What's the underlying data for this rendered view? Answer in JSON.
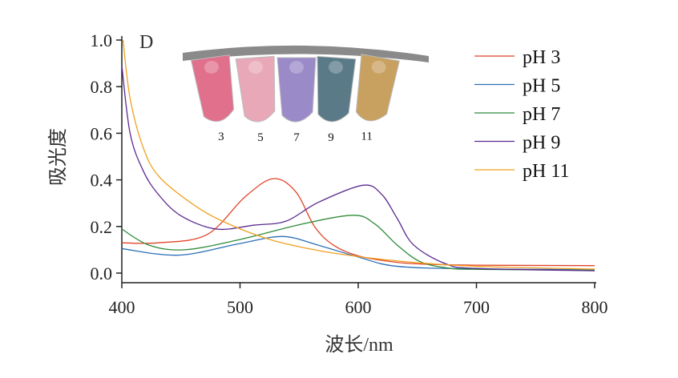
{
  "chart_data": {
    "type": "line",
    "panel_label": "D",
    "xlabel": "波长/nm",
    "ylabel": "吸光度",
    "xlim": [
      400,
      800
    ],
    "ylim": [
      0,
      1.0
    ],
    "xticks": [
      "400",
      "500",
      "600",
      "700",
      "800"
    ],
    "yticks": [
      "0.0",
      "0.2",
      "0.4",
      "0.6",
      "0.8",
      "1.0"
    ],
    "legend_position": "top-right",
    "series": [
      {
        "name": "pH 3",
        "color": "#e0452a",
        "x": [
          400,
          431,
          472,
          504,
          528,
          547,
          563,
          579,
          600,
          633,
          660,
          700,
          800
        ],
        "y": [
          0.13,
          0.13,
          0.165,
          0.326,
          0.405,
          0.35,
          0.2,
          0.12,
          0.074,
          0.046,
          0.038,
          0.034,
          0.032
        ]
      },
      {
        "name": "pH 5",
        "color": "#2b6fb8",
        "x": [
          400,
          448,
          499,
          536,
          566,
          600,
          633,
          700,
          800
        ],
        "y": [
          0.105,
          0.077,
          0.126,
          0.157,
          0.12,
          0.069,
          0.029,
          0.018,
          0.015
        ]
      },
      {
        "name": "pH 7",
        "color": "#2e8b3a",
        "x": [
          400,
          423,
          453,
          499,
          553,
          596,
          614,
          633,
          652,
          674,
          700,
          800
        ],
        "y": [
          0.189,
          0.12,
          0.1,
          0.143,
          0.211,
          0.248,
          0.211,
          0.12,
          0.05,
          0.023,
          0.016,
          0.012
        ]
      },
      {
        "name": "pH 9",
        "color": "#5a2a90",
        "x": [
          400,
          407,
          418,
          431,
          450,
          480,
          512,
          539,
          566,
          604,
          620,
          633,
          647,
          674,
          700,
          800
        ],
        "y": [
          0.89,
          0.6,
          0.44,
          0.337,
          0.246,
          0.189,
          0.206,
          0.223,
          0.303,
          0.377,
          0.337,
          0.234,
          0.12,
          0.04,
          0.02,
          0.01
        ]
      },
      {
        "name": "pH 11",
        "color": "#f0a020",
        "x": [
          401,
          407,
          418,
          431,
          458,
          485,
          526,
          566,
          600,
          647,
          700,
          800
        ],
        "y": [
          1.0,
          0.75,
          0.54,
          0.417,
          0.303,
          0.223,
          0.143,
          0.097,
          0.071,
          0.046,
          0.029,
          0.017
        ]
      }
    ],
    "inset": {
      "tube_labels": [
        "3",
        "5",
        "7",
        "9",
        "11"
      ],
      "tube_colors": [
        "#e0708c",
        "#e8a8b8",
        "#9a8ac8",
        "#5a7a88",
        "#c8a060"
      ]
    }
  }
}
